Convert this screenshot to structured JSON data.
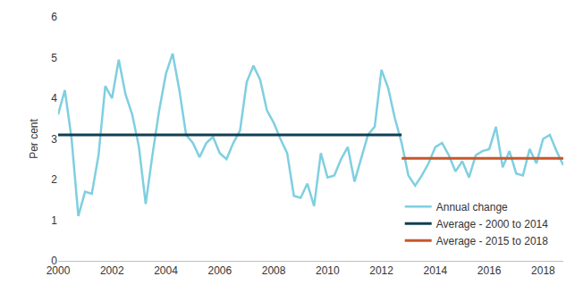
{
  "chart_data": {
    "type": "line",
    "y_label": "Per cent",
    "xlim": [
      2000,
      2018.75
    ],
    "xticks": [
      2000,
      2002,
      2004,
      2006,
      2008,
      2010,
      2012,
      2014,
      2016,
      2018
    ],
    "ylim": [
      0,
      6
    ],
    "yticks": [
      0,
      1,
      2,
      3,
      4,
      5,
      6
    ],
    "grid": false,
    "legend": "lower right",
    "series": [
      {
        "name": "Annual change",
        "color": "#7fcfe0",
        "x": [
          2000,
          2000.25,
          2000.5,
          2000.75,
          2001,
          2001.25,
          2001.5,
          2001.75,
          2002,
          2002.25,
          2002.5,
          2002.75,
          2003,
          2003.25,
          2003.5,
          2003.75,
          2004,
          2004.25,
          2004.5,
          2004.75,
          2005,
          2005.25,
          2005.5,
          2005.75,
          2006,
          2006.25,
          2006.5,
          2006.75,
          2007,
          2007.25,
          2007.5,
          2007.75,
          2008,
          2008.25,
          2008.5,
          2008.75,
          2009,
          2009.25,
          2009.5,
          2009.75,
          2010,
          2010.25,
          2010.5,
          2010.75,
          2011,
          2011.25,
          2011.5,
          2011.75,
          2012,
          2012.25,
          2012.5,
          2012.75,
          2013,
          2013.25,
          2013.5,
          2013.75,
          2014,
          2014.25,
          2014.5,
          2014.75,
          2015,
          2015.25,
          2015.5,
          2015.75,
          2016,
          2016.25,
          2016.5,
          2016.75,
          2017,
          2017.25,
          2017.5,
          2017.75,
          2018,
          2018.25,
          2018.5,
          2018.75
        ],
        "values": [
          3.6,
          4.2,
          3.0,
          1.1,
          1.7,
          1.65,
          2.6,
          4.3,
          4.0,
          4.95,
          4.1,
          3.6,
          2.8,
          1.4,
          2.6,
          3.7,
          4.6,
          5.1,
          4.2,
          3.1,
          2.9,
          2.55,
          2.9,
          3.05,
          2.65,
          2.5,
          2.9,
          3.2,
          4.4,
          4.8,
          4.45,
          3.7,
          3.4,
          3.0,
          2.65,
          1.6,
          1.55,
          1.9,
          1.35,
          2.65,
          2.05,
          2.1,
          2.5,
          2.8,
          1.95,
          2.55,
          3.1,
          3.3,
          4.7,
          4.25,
          3.5,
          2.9,
          2.1,
          1.85,
          2.1,
          2.4,
          2.8,
          2.9,
          2.6,
          2.2,
          2.45,
          2.05,
          2.6,
          2.7,
          2.75,
          3.3,
          2.3,
          2.7,
          2.15,
          2.1,
          2.75,
          2.4,
          3.0,
          3.1,
          2.7,
          2.35
        ]
      },
      {
        "name": "Average - 2000 to 2014",
        "color": "#123f52",
        "x": [
          2000,
          2012.75
        ],
        "values": [
          3.1,
          3.1
        ]
      },
      {
        "name": "Average - 2015 to 2018",
        "color": "#c9572b",
        "x": [
          2012.75,
          2018.75
        ],
        "values": [
          2.52,
          2.52
        ]
      }
    ]
  }
}
